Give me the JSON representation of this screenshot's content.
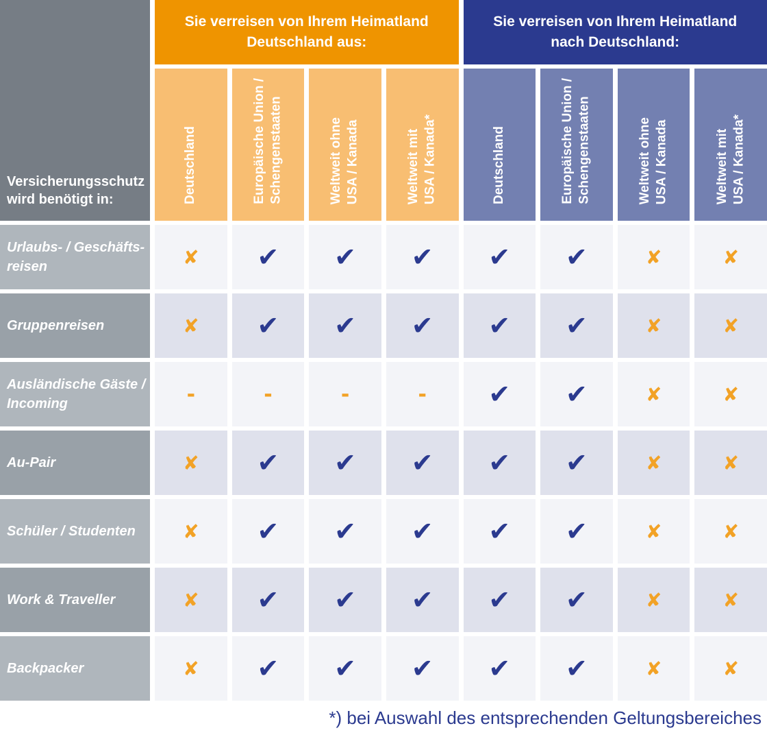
{
  "chart_data": {
    "type": "table",
    "corner_header": "Versicherungsschutz\nwird benötigt in:",
    "groups": [
      {
        "label": "Sie verreisen von Ihrem Heimatland\nDeutschland aus:",
        "theme": "orange",
        "columns": [
          "Deutschland",
          "Europäische Union /\nSchengenstaaten",
          "Weltweit ohne\nUSA / Kanada",
          "Weltweit mit\nUSA / Kanada*"
        ]
      },
      {
        "label": "Sie verreisen von Ihrem Heimatland\nnach Deutschland:",
        "theme": "blue",
        "columns": [
          "Deutschland",
          "Europäische Union /\nSchengenstaaten",
          "Weltweit ohne\nUSA / Kanada",
          "Weltweit mit\nUSA / Kanada*"
        ]
      }
    ],
    "rows": [
      {
        "label": "Urlaubs- / Geschäfts-\nreisen",
        "values": [
          "cross",
          "check",
          "check",
          "check",
          "check",
          "check",
          "cross",
          "cross"
        ]
      },
      {
        "label": "Gruppenreisen",
        "values": [
          "cross",
          "check",
          "check",
          "check",
          "check",
          "check",
          "cross",
          "cross"
        ]
      },
      {
        "label": "Ausländische Gäste /\nIncoming",
        "values": [
          "dash",
          "dash",
          "dash",
          "dash",
          "check",
          "check",
          "cross",
          "cross"
        ]
      },
      {
        "label": "Au-Pair",
        "values": [
          "cross",
          "check",
          "check",
          "check",
          "check",
          "check",
          "cross",
          "cross"
        ]
      },
      {
        "label": "Schüler / Studenten",
        "values": [
          "cross",
          "check",
          "check",
          "check",
          "check",
          "check",
          "cross",
          "cross"
        ]
      },
      {
        "label": "Work & Traveller",
        "values": [
          "cross",
          "check",
          "check",
          "check",
          "check",
          "check",
          "cross",
          "cross"
        ]
      },
      {
        "label": "Backpacker",
        "values": [
          "cross",
          "check",
          "check",
          "check",
          "check",
          "check",
          "cross",
          "cross"
        ]
      }
    ],
    "symbols": {
      "check": "✔",
      "cross": "✘",
      "dash": "-"
    },
    "footnote": "*) bei Auswahl des entsprechenden Geltungsbereiches"
  },
  "colors": {
    "orange_group_header": "#EF9400",
    "orange_column_header": "#F8BE72",
    "blue_group_header": "#2B3A8F",
    "blue_column_header": "#7380B1",
    "corner_header_gray": "#767D85",
    "row_label_light": "#AFB6BC",
    "row_label_dark": "#99A1A8",
    "cell_light": "#F3F4F8",
    "cell_dark": "#DFE1EC",
    "check_mark": "#2B3A8F",
    "cross_mark": "#F2A226",
    "footnote_text": "#2B3A8F"
  }
}
